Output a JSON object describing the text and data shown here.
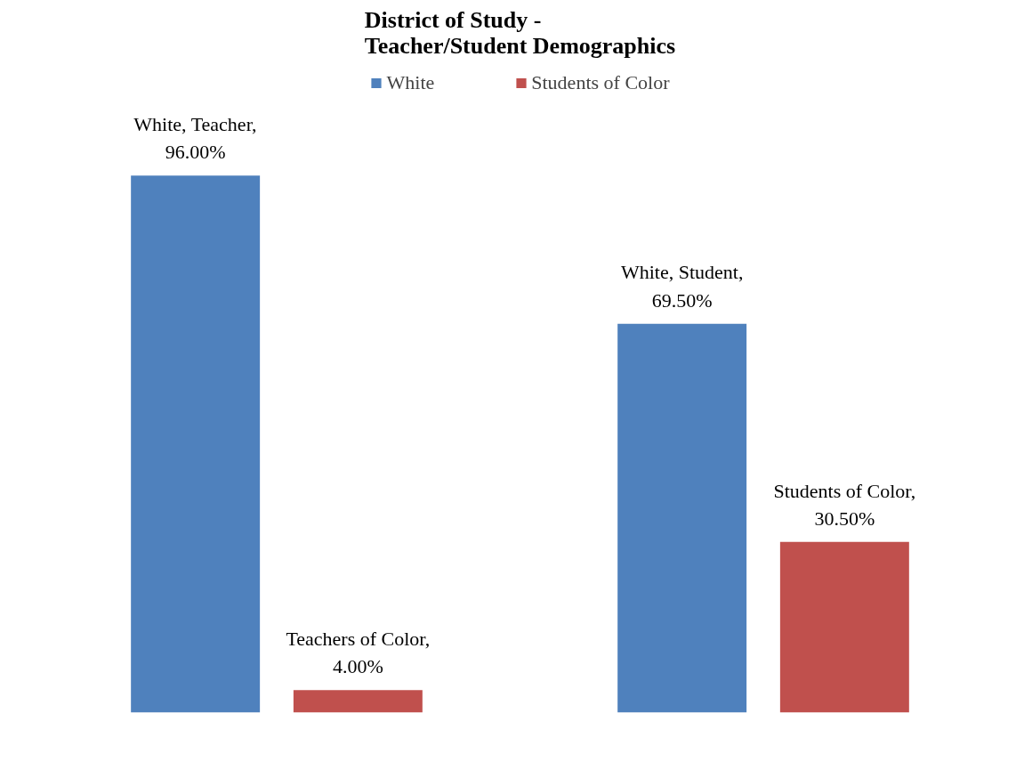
{
  "chart_data": {
    "type": "bar",
    "title": "District of Study -\nTeacher/Student Demographics",
    "categories": [
      null,
      null
    ],
    "series": [
      {
        "name": "White",
        "color": "#4f81bd",
        "values": [
          96,
          69.5
        ],
        "value_labels": [
          "White, Teacher, 96.00%",
          "White, Student, 69.50%"
        ]
      },
      {
        "name": "Students of Color",
        "color": "#c0504d",
        "values": [
          4,
          30.5
        ],
        "value_labels": [
          "Teachers of Color, 4.00%",
          "Students of Color, 30.50%"
        ]
      }
    ],
    "tick_labels": false,
    "grid": false,
    "legend": "top"
  }
}
